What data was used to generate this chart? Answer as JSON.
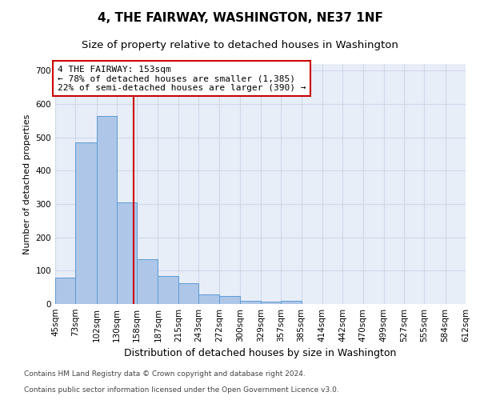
{
  "title": "4, THE FAIRWAY, WASHINGTON, NE37 1NF",
  "subtitle": "Size of property relative to detached houses in Washington",
  "xlabel": "Distribution of detached houses by size in Washington",
  "ylabel": "Number of detached properties",
  "footnote1": "Contains HM Land Registry data © Crown copyright and database right 2024.",
  "footnote2": "Contains public sector information licensed under the Open Government Licence v3.0.",
  "annotation_line1": "4 THE FAIRWAY: 153sqm",
  "annotation_line2": "← 78% of detached houses are smaller (1,385)",
  "annotation_line3": "22% of semi-detached houses are larger (390) →",
  "bar_left_edges": [
    45,
    73,
    102,
    130,
    158,
    187,
    215,
    243,
    272,
    300,
    329,
    357,
    385,
    414,
    442,
    470,
    499,
    527,
    555,
    584
  ],
  "bar_widths": [
    28,
    29,
    28,
    28,
    29,
    28,
    28,
    29,
    28,
    29,
    28,
    28,
    29,
    28,
    28,
    29,
    28,
    28,
    29,
    28
  ],
  "bar_heights": [
    80,
    485,
    565,
    305,
    135,
    83,
    62,
    30,
    25,
    10,
    8,
    10,
    0,
    0,
    0,
    0,
    0,
    0,
    0,
    0
  ],
  "tick_labels": [
    "45sqm",
    "73sqm",
    "102sqm",
    "130sqm",
    "158sqm",
    "187sqm",
    "215sqm",
    "243sqm",
    "272sqm",
    "300sqm",
    "329sqm",
    "357sqm",
    "385sqm",
    "414sqm",
    "442sqm",
    "470sqm",
    "499sqm",
    "527sqm",
    "555sqm",
    "584sqm",
    "612sqm"
  ],
  "bar_color": "#aec6e8",
  "bar_edge_color": "#5b9bd5",
  "vline_color": "#cc0000",
  "vline_x": 153,
  "annotation_box_color": "#cc0000",
  "ylim": [
    0,
    720
  ],
  "yticks": [
    0,
    100,
    200,
    300,
    400,
    500,
    600,
    700
  ],
  "grid_color": "#d0d8e8",
  "bg_color": "#e8eef8",
  "title_fontsize": 11,
  "subtitle_fontsize": 9.5,
  "xlabel_fontsize": 9,
  "ylabel_fontsize": 8,
  "tick_fontsize": 7.5,
  "annotation_fontsize": 8,
  "footnote_fontsize": 6.5
}
